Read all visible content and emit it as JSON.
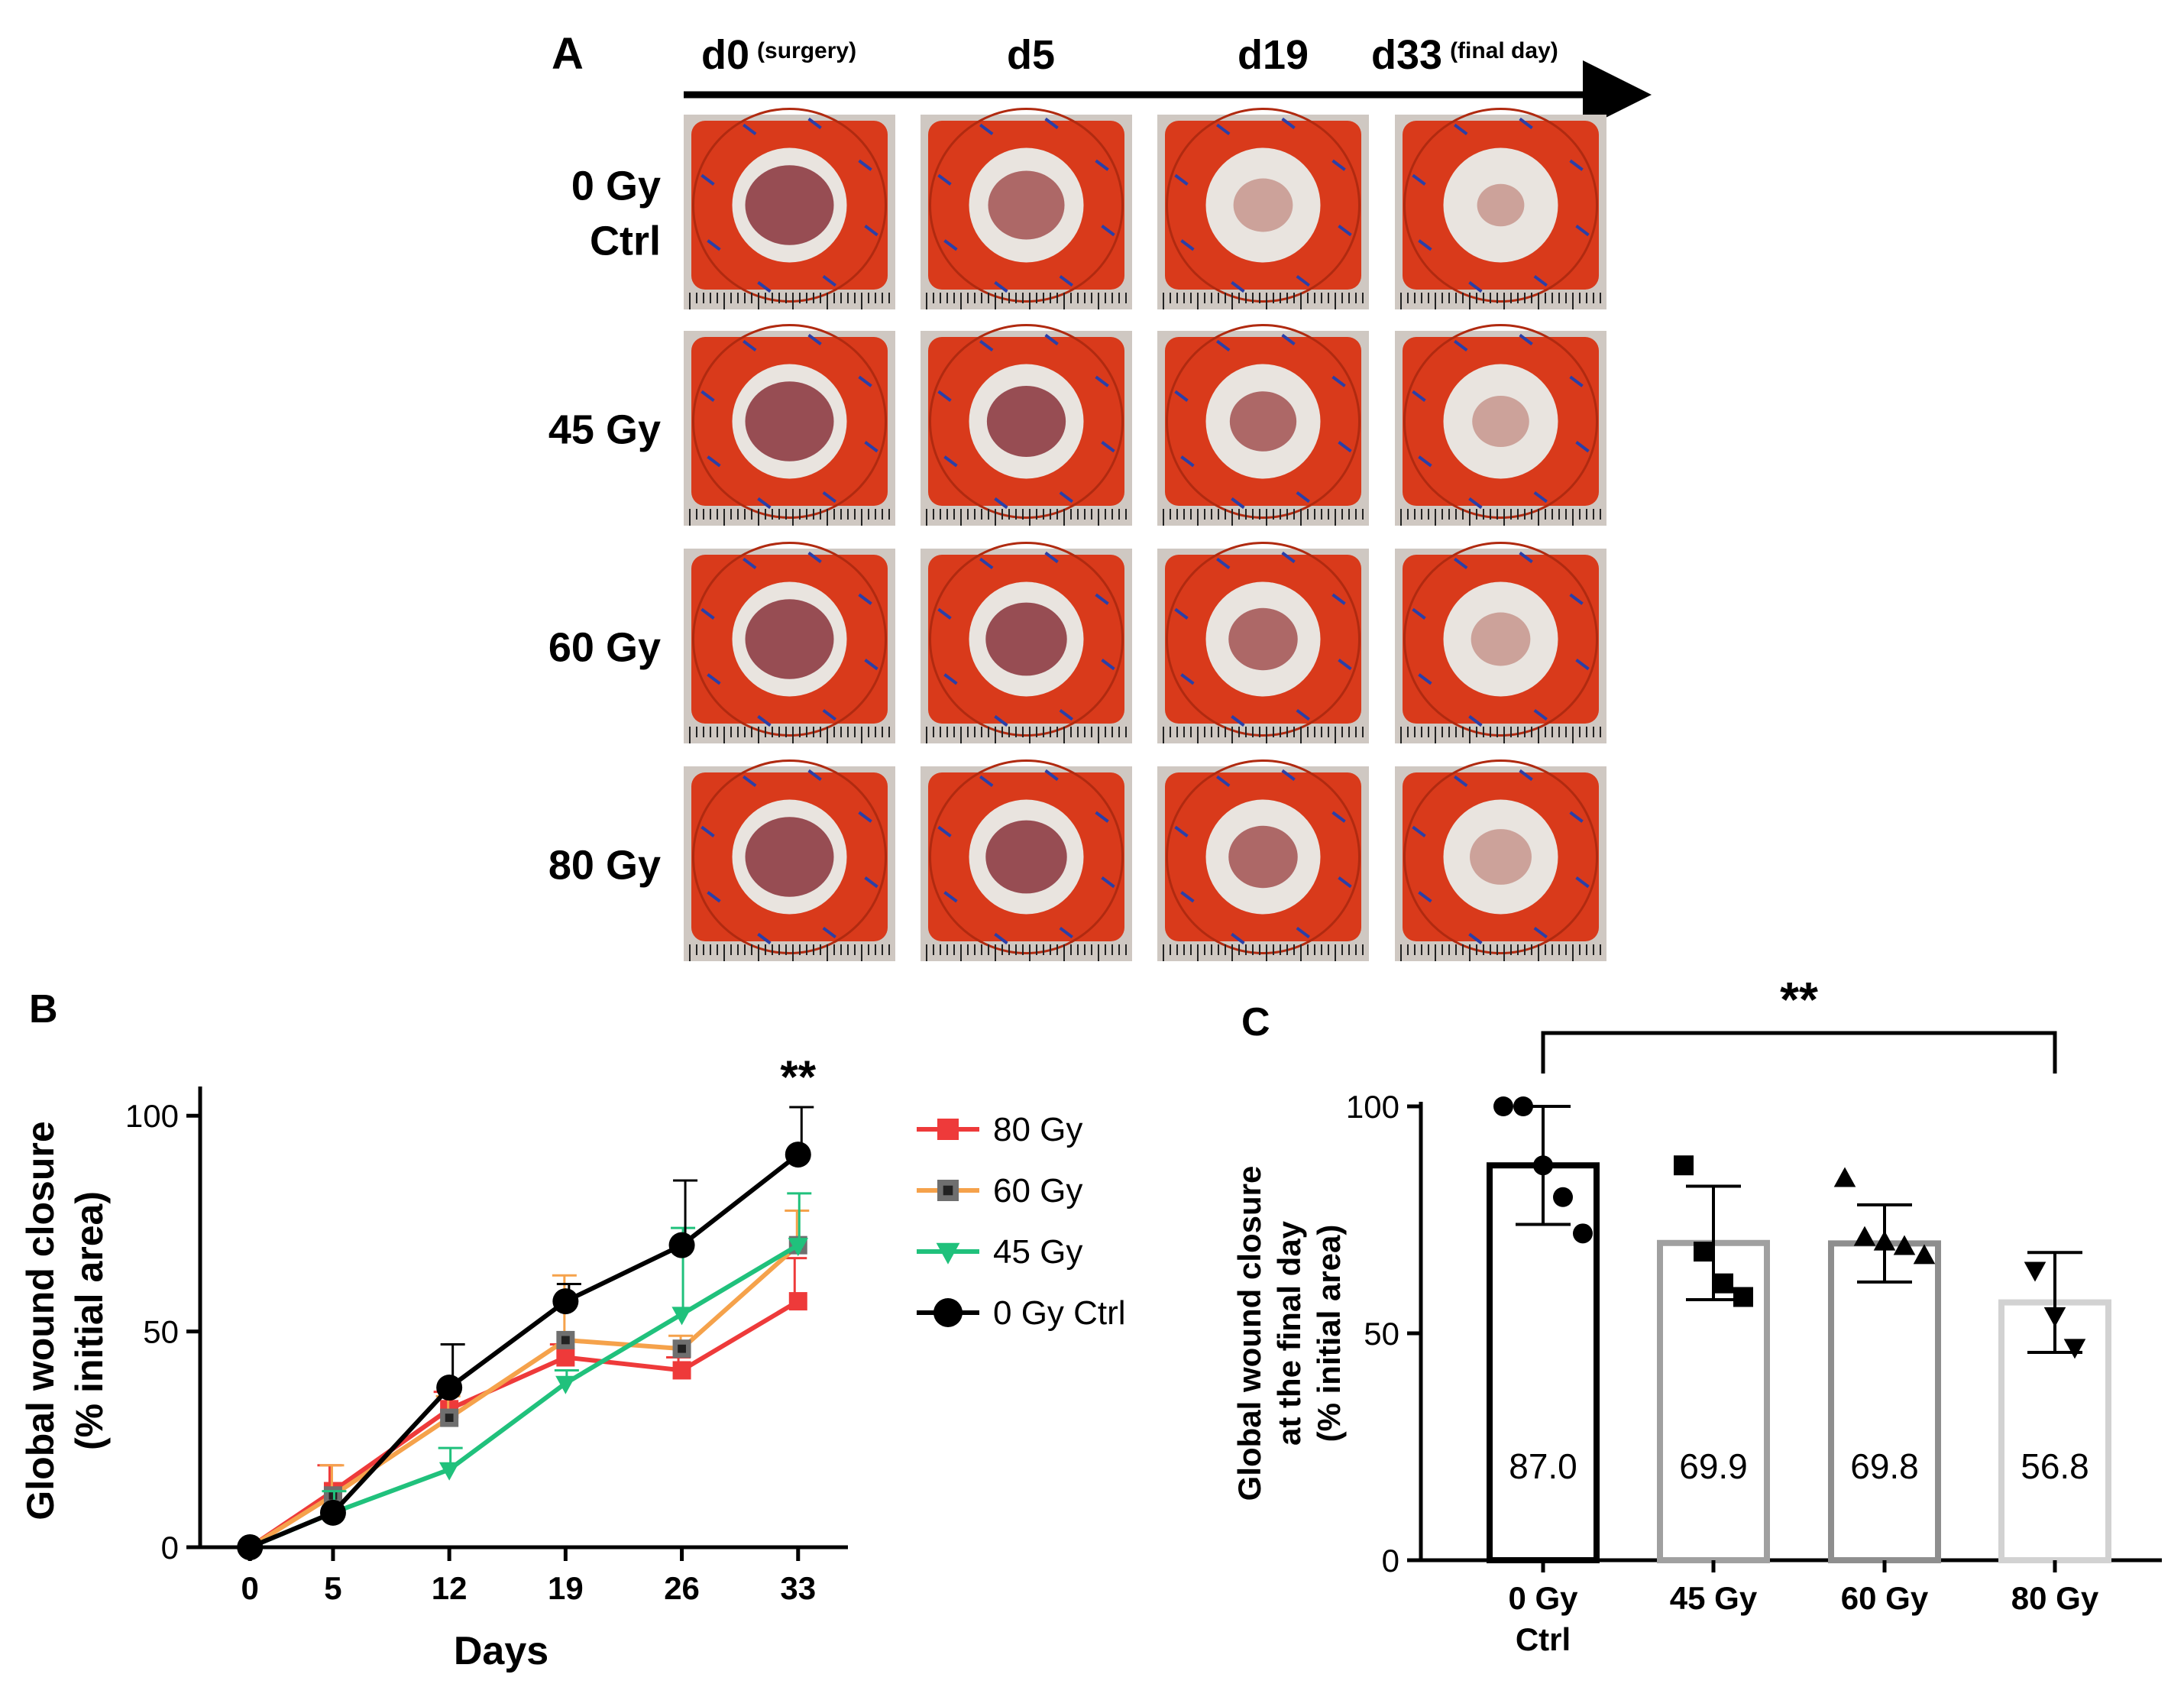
{
  "panel_a": {
    "label": "A",
    "timeline": [
      {
        "day": "d0",
        "note": "(surgery)"
      },
      {
        "day": "d5",
        "note": ""
      },
      {
        "day": "d19",
        "note": ""
      },
      {
        "day": "d33",
        "note": "(final day)"
      }
    ],
    "rows": [
      {
        "label_lines": [
          "0 Gy",
          "Ctrl"
        ],
        "healing": [
          0.0,
          0.25,
          0.6,
          0.85
        ]
      },
      {
        "label_lines": [
          "45 Gy"
        ],
        "healing": [
          0.0,
          0.2,
          0.45,
          0.65
        ]
      },
      {
        "label_lines": [
          "60 Gy"
        ],
        "healing": [
          0.0,
          0.15,
          0.4,
          0.6
        ]
      },
      {
        "label_lines": [
          "80 Gy"
        ],
        "healing": [
          0.0,
          0.15,
          0.4,
          0.55
        ]
      }
    ],
    "colors": {
      "frame": "#d93a1b",
      "frame_dark": "#b02a10",
      "ring": "#e9e4df",
      "wound": "#8e3c44",
      "base": "#cfc8c2"
    }
  },
  "chart_data": [
    {
      "panel": "B",
      "type": "line",
      "xlabel": "Days",
      "ylabel_lines": [
        "Global wound closure",
        "(% initial area)"
      ],
      "x": [
        0,
        5,
        12,
        19,
        26,
        33
      ],
      "xlim": [
        -3,
        36
      ],
      "ylim": [
        0,
        105
      ],
      "yticks": [
        0,
        50,
        100
      ],
      "annotation": {
        "text": "**",
        "x": 33
      },
      "series": [
        {
          "name": "80 Gy",
          "color": "#ee3a3a",
          "marker": "square",
          "values": [
            0,
            13,
            32,
            44,
            41,
            57
          ],
          "err": [
            0,
            6,
            4,
            3,
            3,
            10
          ]
        },
        {
          "name": "60 Gy",
          "color": "#f5a24b",
          "marker": "square-gray",
          "values": [
            0,
            12,
            30,
            48,
            46,
            70
          ],
          "err": [
            0,
            7,
            5,
            15,
            3,
            8
          ]
        },
        {
          "name": "45 Gy",
          "color": "#20c17c",
          "marker": "triangle-down",
          "values": [
            0,
            8,
            18,
            38,
            54,
            70
          ],
          "err": [
            0,
            5,
            5,
            3,
            20,
            12
          ]
        },
        {
          "name": "0 Gy Ctrl",
          "color": "#000000",
          "marker": "circle",
          "values": [
            0,
            8,
            37,
            57,
            70,
            91
          ],
          "err": [
            0,
            0,
            10,
            4,
            15,
            11
          ]
        }
      ]
    },
    {
      "panel": "C",
      "type": "bar",
      "ylabel_lines": [
        "Global wound closure",
        "at the final day",
        "(% initial area)"
      ],
      "ylim": [
        0,
        100
      ],
      "yticks": [
        0,
        50,
        100
      ],
      "categories": [
        [
          "0 Gy",
          "Ctrl"
        ],
        [
          "45 Gy"
        ],
        [
          "60 Gy"
        ],
        [
          "80 Gy"
        ]
      ],
      "values": [
        87.0,
        69.9,
        69.8,
        56.8
      ],
      "value_labels": [
        "87.0",
        "69.9",
        "69.8",
        "56.8"
      ],
      "sd": [
        13,
        12.5,
        8.5,
        11
      ],
      "bar_colors": [
        "#000000",
        "#a0a0a0",
        "#8e8e8e",
        "#d2d2d2"
      ],
      "point_markers": [
        "circle",
        "square",
        "triangle",
        "triangle-down"
      ],
      "points": [
        [
          100,
          100,
          87,
          80,
          72
        ],
        [
          87,
          68,
          61,
          58
        ],
        [
          84,
          71,
          70,
          69,
          67
        ],
        [
          64,
          54,
          47
        ]
      ],
      "significance": {
        "text": "**",
        "from": 0,
        "to": 3
      }
    }
  ]
}
